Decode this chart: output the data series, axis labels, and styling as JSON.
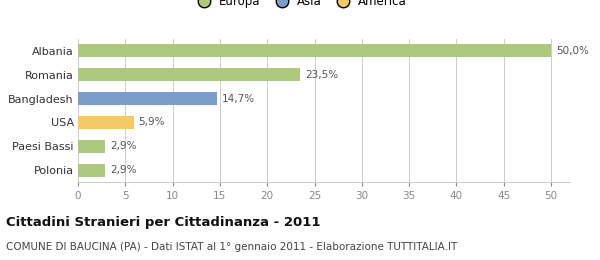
{
  "categories": [
    "Albania",
    "Romania",
    "Bangladesh",
    "USA",
    "Paesi Bassi",
    "Polonia"
  ],
  "values": [
    50.0,
    23.5,
    14.7,
    5.9,
    2.9,
    2.9
  ],
  "labels": [
    "50,0%",
    "23,5%",
    "14,7%",
    "5,9%",
    "2,9%",
    "2,9%"
  ],
  "bar_colors": [
    "#adc97e",
    "#adc97e",
    "#7b9dc9",
    "#f5c96a",
    "#adc97e",
    "#adc97e"
  ],
  "legend_items": [
    {
      "label": "Europa",
      "color": "#adc97e"
    },
    {
      "label": "Asia",
      "color": "#7b9dc9"
    },
    {
      "label": "America",
      "color": "#f5c96a"
    }
  ],
  "xlim": [
    0,
    52
  ],
  "xticks": [
    0,
    5,
    10,
    15,
    20,
    25,
    30,
    35,
    40,
    45,
    50
  ],
  "title": "Cittadini Stranieri per Cittadinanza - 2011",
  "subtitle": "COMUNE DI BAUCINA (PA) - Dati ISTAT al 1° gennaio 2011 - Elaborazione TUTTITALIA.IT",
  "bar_height": 0.55,
  "background_color": "#ffffff",
  "grid_color": "#cccccc",
  "title_fontsize": 9.5,
  "subtitle_fontsize": 7.5,
  "label_fontsize": 7.5,
  "ytick_fontsize": 8,
  "xtick_fontsize": 7.5
}
